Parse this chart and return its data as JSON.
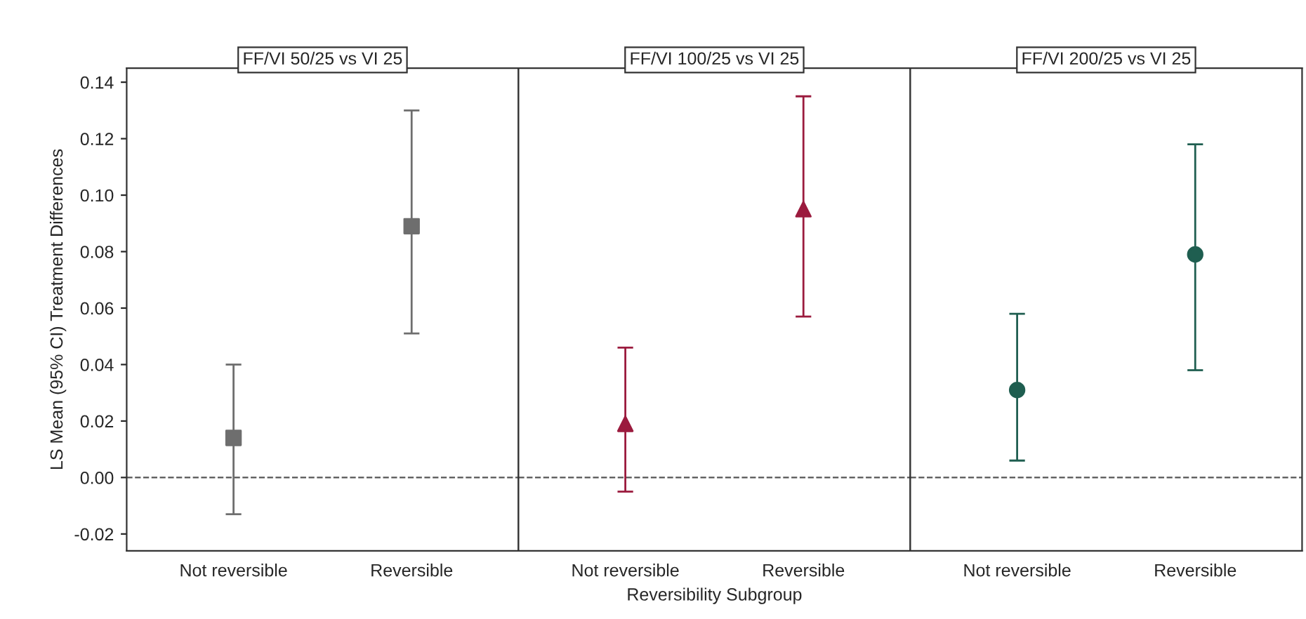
{
  "chart_data": [
    {
      "type": "scatter",
      "title": "FF/VI 50/25 vs VI 25",
      "ylabel": "LS Mean (95% CI) Treatment Differences",
      "categories": [
        "Not reversible",
        "Reversible"
      ],
      "series": [
        {
          "color": "#6e6e6e",
          "values": [
            0.014,
            0.089
          ],
          "errors": [
            [
              -0.013,
              0.04
            ],
            [
              0.051,
              0.13
            ]
          ]
        }
      ],
      "marker": "square",
      "ylim": [
        -0.026,
        0.145
      ],
      "yticks": [
        {
          "value": -0.02,
          "label": "-0.02"
        },
        {
          "value": 0.0,
          "label": "0.00"
        },
        {
          "value": 0.02,
          "label": "0.02"
        },
        {
          "value": 0.04,
          "label": "0.04"
        },
        {
          "value": 0.06,
          "label": "0.06"
        },
        {
          "value": 0.08,
          "label": "0.08"
        },
        {
          "value": 0.1,
          "label": "0.10"
        },
        {
          "value": 0.12,
          "label": "0.12"
        },
        {
          "value": 0.14,
          "label": "0.14"
        }
      ],
      "ref_lines": [
        {
          "axis": "y",
          "value": 0,
          "line_style": "dashed",
          "color": "#555555"
        }
      ],
      "grid": false
    },
    {
      "type": "scatter",
      "title": "FF/VI 100/25 vs VI 25",
      "xlabel": "Reversibility Subgroup",
      "categories": [
        "Not reversible",
        "Reversible"
      ],
      "series": [
        {
          "color": "#9b1b3e",
          "values": [
            0.019,
            0.095
          ],
          "errors": [
            [
              -0.005,
              0.046
            ],
            [
              0.057,
              0.135
            ]
          ]
        }
      ],
      "marker": "triangle",
      "ylim": [
        -0.026,
        0.145
      ],
      "tick_labels": "x",
      "ref_lines": [
        {
          "axis": "y",
          "value": 0,
          "line_style": "dashed",
          "color": "#555555"
        }
      ],
      "grid": false
    },
    {
      "type": "scatter",
      "title": "FF/VI 200/25 vs VI 25",
      "categories": [
        "Not reversible",
        "Reversible"
      ],
      "series": [
        {
          "color": "#1f5e50",
          "values": [
            0.031,
            0.079
          ],
          "errors": [
            [
              0.006,
              0.058
            ],
            [
              0.038,
              0.118
            ]
          ]
        }
      ],
      "marker": "circle",
      "ylim": [
        -0.026,
        0.145
      ],
      "tick_labels": "x",
      "ref_lines": [
        {
          "axis": "y",
          "value": 0,
          "line_style": "dashed",
          "color": "#555555"
        }
      ],
      "grid": false
    }
  ]
}
